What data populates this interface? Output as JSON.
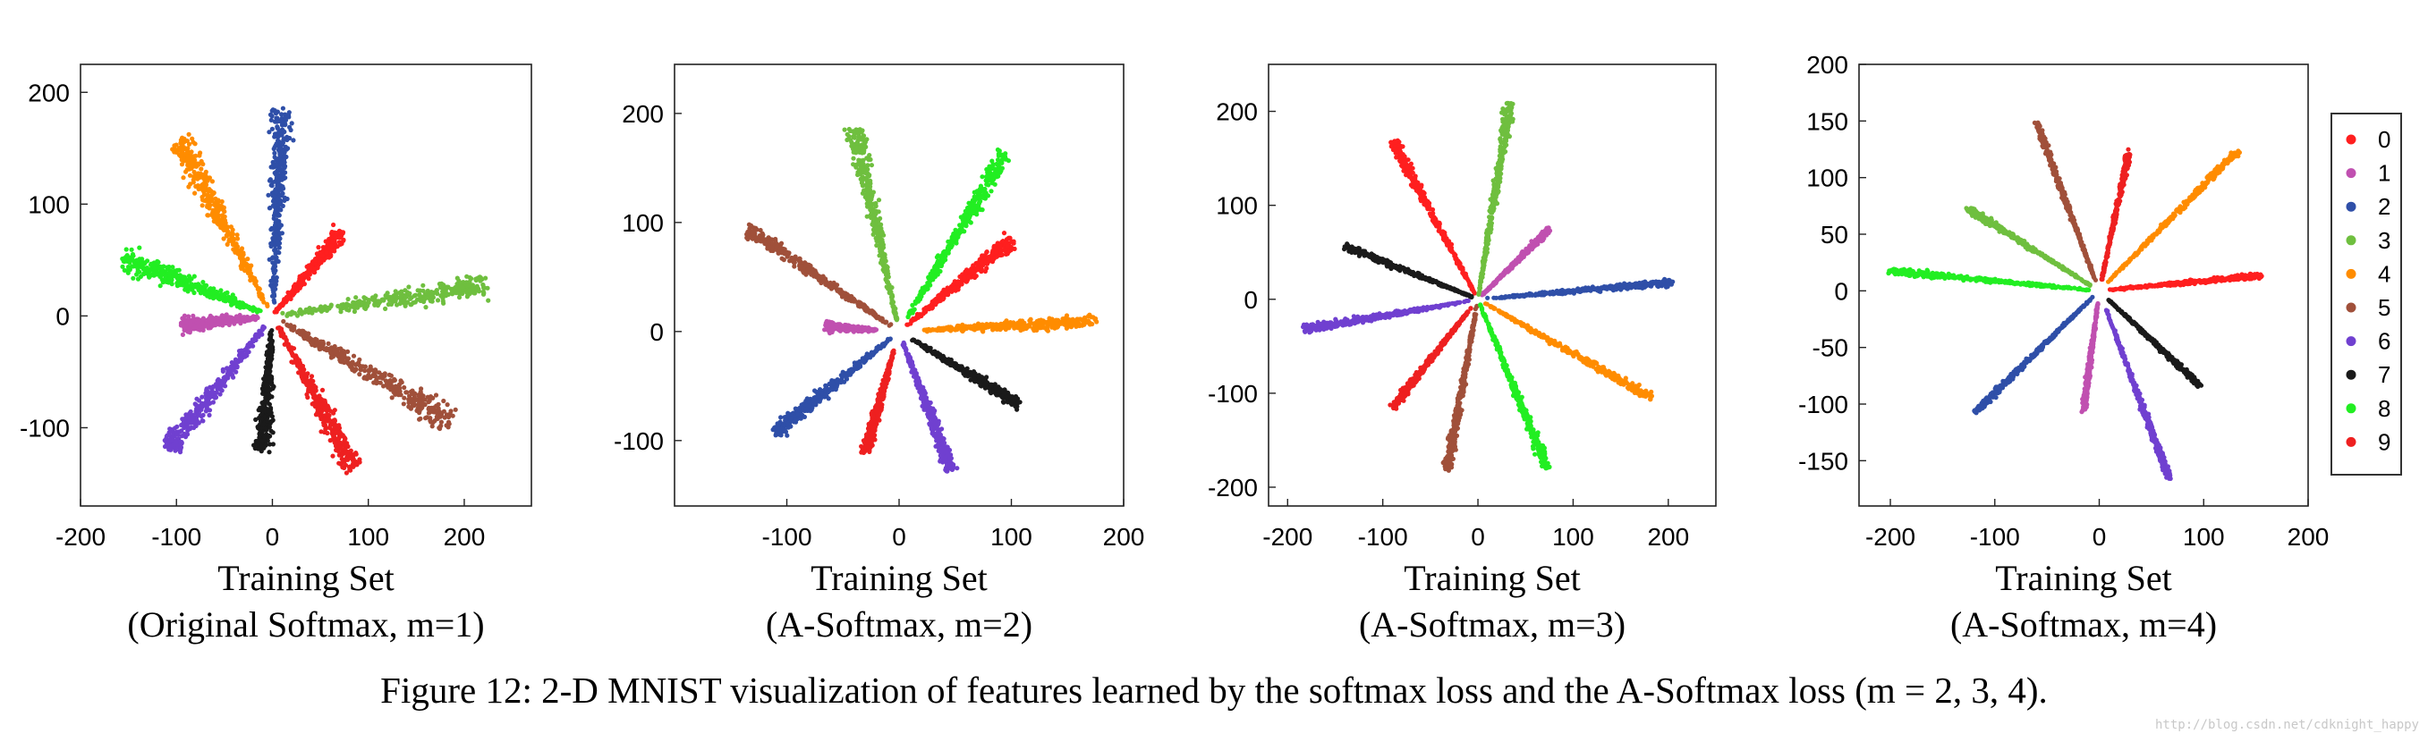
{
  "figure": {
    "caption": "Figure 12: 2-D MNIST visualization of features learned by the softmax loss and the A-Softmax loss (m = 2, 3, 4).",
    "watermark": "http://blog.csdn.net/cdknight_happy"
  },
  "legend": {
    "placement": "right",
    "entries": [
      {
        "label": "0",
        "color": "#ff1f1f"
      },
      {
        "label": "1",
        "color": "#c050b0"
      },
      {
        "label": "2",
        "color": "#2f4fa8"
      },
      {
        "label": "3",
        "color": "#6fbf3f"
      },
      {
        "label": "4",
        "color": "#ff8c00"
      },
      {
        "label": "5",
        "color": "#a0503a"
      },
      {
        "label": "6",
        "color": "#7040d0"
      },
      {
        "label": "7",
        "color": "#1a1a1a"
      },
      {
        "label": "8",
        "color": "#22ee22"
      },
      {
        "label": "9",
        "color": "#ee2020"
      }
    ]
  },
  "chart_data": [
    {
      "type": "scatter",
      "xlabel": "Training Set",
      "subtitle": "(Original Softmax, m=1)",
      "xlim": [
        -200,
        270
      ],
      "ylim": [
        -170,
        225
      ],
      "xticks": [
        -200,
        -100,
        0,
        100,
        200
      ],
      "yticks": [
        -100,
        0,
        100,
        200
      ],
      "grid": false,
      "clusters": [
        {
          "label": "0",
          "angle": 46,
          "r_start": 5,
          "r_end": 105,
          "width_start": 2,
          "width_end": 16
        },
        {
          "label": "1",
          "angle": 185,
          "r_start": 15,
          "r_end": 95,
          "width_start": 3,
          "width_end": 14
        },
        {
          "label": "2",
          "angle": 87,
          "r_start": 10,
          "r_end": 185,
          "width_start": 3,
          "width_end": 24
        },
        {
          "label": "3",
          "angle": 7,
          "r_start": 10,
          "r_end": 225,
          "width_start": 3,
          "width_end": 22
        },
        {
          "label": "4",
          "angle": 122,
          "r_start": 10,
          "r_end": 185,
          "width_start": 3,
          "width_end": 26
        },
        {
          "label": "5",
          "angle": -27,
          "r_start": 10,
          "r_end": 210,
          "width_start": 3,
          "width_end": 26
        },
        {
          "label": "6",
          "angle": -132,
          "r_start": 10,
          "r_end": 160,
          "width_start": 3,
          "width_end": 22
        },
        {
          "label": "7",
          "angle": -95,
          "r_start": 15,
          "r_end": 120,
          "width_start": 3,
          "width_end": 18
        },
        {
          "label": "8",
          "angle": 162,
          "r_start": 10,
          "r_end": 165,
          "width_start": 3,
          "width_end": 24
        },
        {
          "label": "9",
          "angle": -58,
          "r_start": 10,
          "r_end": 160,
          "width_start": 3,
          "width_end": 22
        }
      ]
    },
    {
      "type": "scatter",
      "xlabel": "Training Set",
      "subtitle": "(A-Softmax, m=2)",
      "xlim": [
        -200,
        200
      ],
      "ylim": [
        -160,
        245
      ],
      "xticks": [
        -100,
        0,
        100,
        200
      ],
      "yticks": [
        -100,
        0,
        100,
        200
      ],
      "grid": false,
      "clusters": [
        {
          "label": "0",
          "angle": 40,
          "r_start": 10,
          "r_end": 130,
          "width_start": 2,
          "width_end": 14
        },
        {
          "label": "1",
          "angle": 176,
          "r_start": 20,
          "r_end": 65,
          "width_start": 2,
          "width_end": 8
        },
        {
          "label": "2",
          "angle": -140,
          "r_start": 10,
          "r_end": 145,
          "width_start": 2,
          "width_end": 14
        },
        {
          "label": "3",
          "angle": 102,
          "r_start": 10,
          "r_end": 190,
          "width_start": 2,
          "width_end": 16
        },
        {
          "label": "4",
          "angle": 3,
          "r_start": 20,
          "r_end": 175,
          "width_start": 2,
          "width_end": 12
        },
        {
          "label": "5",
          "angle": 145,
          "r_start": 10,
          "r_end": 165,
          "width_start": 2,
          "width_end": 14
        },
        {
          "label": "6",
          "angle": -70,
          "r_start": 10,
          "r_end": 135,
          "width_start": 2,
          "width_end": 12
        },
        {
          "label": "7",
          "angle": -32,
          "r_start": 10,
          "r_end": 125,
          "width_start": 2,
          "width_end": 10
        },
        {
          "label": "8",
          "angle": 60,
          "r_start": 10,
          "r_end": 190,
          "width_start": 2,
          "width_end": 16
        },
        {
          "label": "9",
          "angle": -105,
          "r_start": 20,
          "r_end": 115,
          "width_start": 2,
          "width_end": 10
        }
      ]
    },
    {
      "type": "scatter",
      "xlabel": "Training Set",
      "subtitle": "(A-Softmax, m=3)",
      "xlim": [
        -220,
        250
      ],
      "ylim": [
        -220,
        250
      ],
      "xticks": [
        -200,
        -100,
        0,
        100,
        200
      ],
      "yticks": [
        -200,
        -100,
        0,
        100,
        200
      ],
      "grid": false,
      "clusters": [
        {
          "label": "0",
          "angle": 118,
          "r_start": 5,
          "r_end": 190,
          "width_start": 1,
          "width_end": 10
        },
        {
          "label": "1",
          "angle": 45,
          "r_start": 5,
          "r_end": 105,
          "width_start": 1,
          "width_end": 6
        },
        {
          "label": "2",
          "angle": 5,
          "r_start": 10,
          "r_end": 205,
          "width_start": 1,
          "width_end": 8
        },
        {
          "label": "3",
          "angle": 81,
          "r_start": 5,
          "r_end": 210,
          "width_start": 1,
          "width_end": 10
        },
        {
          "label": "4",
          "angle": -30,
          "r_start": 10,
          "r_end": 210,
          "width_start": 1,
          "width_end": 10
        },
        {
          "label": "5",
          "angle": -100,
          "r_start": 5,
          "r_end": 185,
          "width_start": 1,
          "width_end": 10
        },
        {
          "label": "6",
          "angle": -170,
          "r_start": 10,
          "r_end": 185,
          "width_start": 1,
          "width_end": 10
        },
        {
          "label": "7",
          "angle": 158,
          "r_start": 5,
          "r_end": 150,
          "width_start": 1,
          "width_end": 8
        },
        {
          "label": "8",
          "angle": -68,
          "r_start": 5,
          "r_end": 195,
          "width_start": 1,
          "width_end": 10
        },
        {
          "label": "9",
          "angle": -128,
          "r_start": 10,
          "r_end": 145,
          "width_start": 1,
          "width_end": 8
        }
      ]
    },
    {
      "type": "scatter",
      "xlabel": "Training Set",
      "subtitle": "(A-Softmax, m=4)",
      "xlim": [
        -230,
        200
      ],
      "ylim": [
        -190,
        200
      ],
      "xticks": [
        -200,
        -100,
        0,
        100,
        200
      ],
      "yticks": [
        -150,
        -100,
        -50,
        0,
        50,
        100,
        150,
        200
      ],
      "grid": false,
      "clusters": [
        {
          "label": "0",
          "angle": 5,
          "r_start": 10,
          "r_end": 155,
          "width_start": 1,
          "width_end": 5
        },
        {
          "label": "1",
          "angle": -98,
          "r_start": 10,
          "r_end": 105,
          "width_start": 1,
          "width_end": 5
        },
        {
          "label": "2",
          "angle": -138,
          "r_start": 10,
          "r_end": 160,
          "width_start": 1,
          "width_end": 6
        },
        {
          "label": "3",
          "angle": 150,
          "r_start": 10,
          "r_end": 145,
          "width_start": 1,
          "width_end": 6
        },
        {
          "label": "4",
          "angle": 43,
          "r_start": 10,
          "r_end": 180,
          "width_start": 1,
          "width_end": 6
        },
        {
          "label": "5",
          "angle": 112,
          "r_start": 10,
          "r_end": 160,
          "width_start": 1,
          "width_end": 6
        },
        {
          "label": "6",
          "angle": -68,
          "r_start": 10,
          "r_end": 178,
          "width_start": 1,
          "width_end": 6
        },
        {
          "label": "7",
          "angle": -41,
          "r_start": 10,
          "r_end": 128,
          "width_start": 1,
          "width_end": 5
        },
        {
          "label": "8",
          "angle": 175,
          "r_start": 10,
          "r_end": 200,
          "width_start": 1,
          "width_end": 6
        },
        {
          "label": "9",
          "angle": 77,
          "r_start": 10,
          "r_end": 125,
          "width_start": 1,
          "width_end": 5
        }
      ]
    }
  ]
}
